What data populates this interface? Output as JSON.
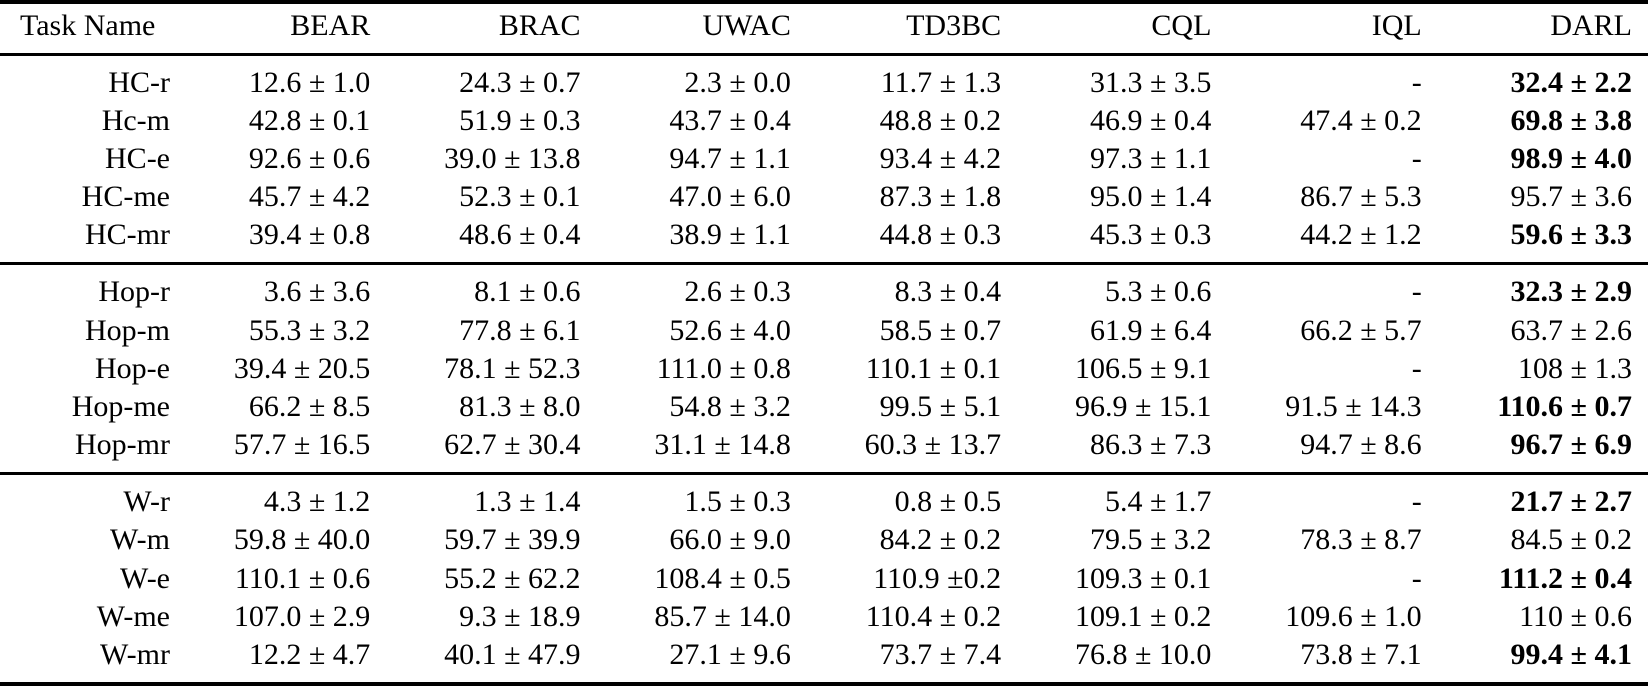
{
  "table": {
    "columns": [
      "Task Name",
      "BEAR",
      "BRAC",
      "UWAC",
      "TD3BC",
      "CQL",
      "IQL",
      "DARL"
    ],
    "groups": [
      {
        "id": "halfcheetah",
        "rows": [
          {
            "task": "HC-r",
            "values": [
              "12.6 ± 1.0",
              "24.3 ± 0.7",
              "2.3 ± 0.0",
              "11.7 ± 1.3",
              "31.3 ± 3.5",
              "-",
              "32.4 ± 2.2"
            ],
            "bold_last": true
          },
          {
            "task": "Hc-m",
            "values": [
              "42.8 ± 0.1",
              "51.9 ± 0.3",
              "43.7 ± 0.4",
              "48.8 ± 0.2",
              "46.9 ± 0.4",
              "47.4 ± 0.2",
              "69.8 ± 3.8"
            ],
            "bold_last": true
          },
          {
            "task": "HC-e",
            "values": [
              "92.6 ± 0.6",
              "39.0 ± 13.8",
              "94.7 ± 1.1",
              "93.4 ± 4.2",
              "97.3 ± 1.1",
              "-",
              "98.9 ± 4.0"
            ],
            "bold_last": true
          },
          {
            "task": "HC-me",
            "values": [
              "45.7 ± 4.2",
              "52.3 ± 0.1",
              "47.0 ± 6.0",
              "87.3 ± 1.8",
              "95.0 ± 1.4",
              "86.7 ± 5.3",
              "95.7 ± 3.6"
            ],
            "bold_last": false
          },
          {
            "task": "HC-mr",
            "values": [
              "39.4 ± 0.8",
              "48.6 ± 0.4",
              "38.9 ± 1.1",
              "44.8 ± 0.3",
              "45.3 ± 0.3",
              "44.2 ± 1.2",
              "59.6 ± 3.3"
            ],
            "bold_last": true
          }
        ]
      },
      {
        "id": "hopper",
        "rows": [
          {
            "task": "Hop-r",
            "values": [
              "3.6 ± 3.6",
              "8.1 ± 0.6",
              "2.6 ± 0.3",
              "8.3 ± 0.4",
              "5.3 ± 0.6",
              "-",
              "32.3 ± 2.9"
            ],
            "bold_last": true
          },
          {
            "task": "Hop-m",
            "values": [
              "55.3 ± 3.2",
              "77.8 ± 6.1",
              "52.6 ± 4.0",
              "58.5 ± 0.7",
              "61.9 ± 6.4",
              "66.2 ± 5.7",
              "63.7 ± 2.6"
            ],
            "bold_last": false
          },
          {
            "task": "Hop-e",
            "values": [
              "39.4 ± 20.5",
              "78.1 ± 52.3",
              "111.0 ± 0.8",
              "110.1 ± 0.1",
              "106.5 ± 9.1",
              "-",
              "108 ± 1.3"
            ],
            "bold_last": false
          },
          {
            "task": "Hop-me",
            "values": [
              "66.2 ± 8.5",
              "81.3 ± 8.0",
              "54.8 ± 3.2",
              "99.5 ± 5.1",
              "96.9 ± 15.1",
              "91.5 ± 14.3",
              "110.6 ± 0.7"
            ],
            "bold_last": true
          },
          {
            "task": "Hop-mr",
            "values": [
              "57.7 ± 16.5",
              "62.7 ± 30.4",
              "31.1 ± 14.8",
              "60.3 ± 13.7",
              "86.3 ± 7.3",
              "94.7 ± 8.6",
              "96.7 ± 6.9"
            ],
            "bold_last": true
          }
        ]
      },
      {
        "id": "walker",
        "rows": [
          {
            "task": "W-r",
            "values": [
              "4.3 ± 1.2",
              "1.3 ± 1.4",
              "1.5 ± 0.3",
              "0.8 ± 0.5",
              "5.4 ± 1.7",
              "-",
              "21.7 ± 2.7"
            ],
            "bold_last": true
          },
          {
            "task": "W-m",
            "values": [
              "59.8 ± 40.0",
              "59.7 ± 39.9",
              "66.0 ± 9.0",
              "84.2 ± 0.2",
              "79.5 ± 3.2",
              "78.3 ± 8.7",
              "84.5 ± 0.2"
            ],
            "bold_last": false
          },
          {
            "task": "W-e",
            "values": [
              "110.1 ± 0.6",
              "55.2 ± 62.2",
              "108.4 ± 0.5",
              "110.9 ±0.2",
              "109.3 ± 0.1",
              "-",
              "111.2 ± 0.4"
            ],
            "bold_last": true
          },
          {
            "task": "W-me",
            "values": [
              "107.0 ± 2.9",
              "9.3 ± 18.9",
              "85.7 ± 14.0",
              "110.4 ± 0.2",
              "109.1 ± 0.2",
              "109.6 ± 1.0",
              "110 ± 0.6"
            ],
            "bold_last": false
          },
          {
            "task": "W-mr",
            "values": [
              "12.2 ± 4.7",
              "40.1 ± 47.9",
              "27.1 ± 9.6",
              "73.7 ± 7.4",
              "76.8 ± 10.0",
              "73.8 ± 7.1",
              "99.4 ± 4.1"
            ],
            "bold_last": true
          }
        ]
      }
    ]
  }
}
